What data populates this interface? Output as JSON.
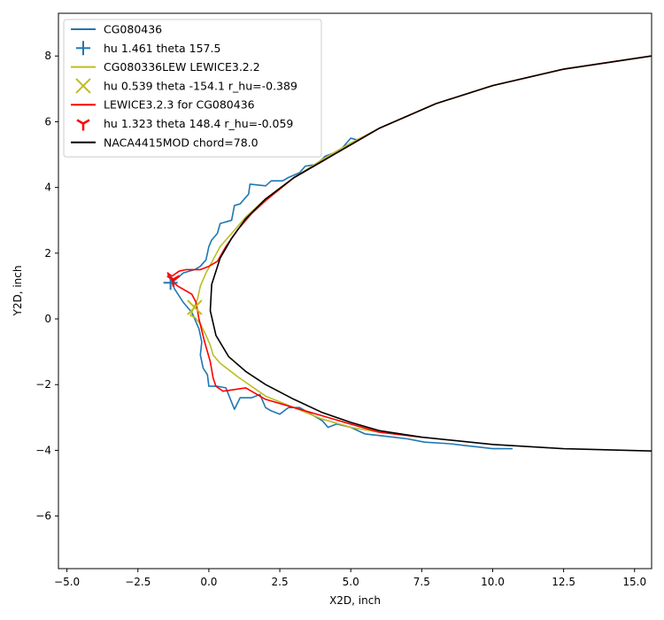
{
  "chart_data": {
    "type": "line",
    "title": "",
    "xlabel": "X2D, inch",
    "ylabel": "Y2D, inch",
    "xlim": [
      -5.3,
      15.6
    ],
    "ylim": [
      -7.6,
      9.3
    ],
    "xticks": [
      -5.0,
      -2.5,
      0.0,
      2.5,
      5.0,
      7.5,
      10.0,
      12.5,
      15.0
    ],
    "xtick_labels": [
      "−5.0",
      "−2.5",
      "0.0",
      "2.5",
      "5.0",
      "7.5",
      "10.0",
      "12.5",
      "15.0"
    ],
    "yticks": [
      -6,
      -4,
      -2,
      0,
      2,
      4,
      6,
      8
    ],
    "ytick_labels": [
      "−6",
      "−4",
      "−2",
      "0",
      "2",
      "4",
      "6",
      "8"
    ],
    "grid": false,
    "legend_position": "top-left",
    "series": [
      {
        "name": "CG080436",
        "kind": "line",
        "color": "#1f77b4",
        "points": [
          [
            10.7,
            -3.95
          ],
          [
            10.0,
            -3.95
          ],
          [
            9.5,
            -3.9
          ],
          [
            9.0,
            -3.85
          ],
          [
            8.5,
            -3.8
          ],
          [
            7.6,
            -3.75
          ],
          [
            7.0,
            -3.65
          ],
          [
            6.5,
            -3.6
          ],
          [
            6.0,
            -3.55
          ],
          [
            5.5,
            -3.5
          ],
          [
            5.0,
            -3.3
          ],
          [
            4.5,
            -3.2
          ],
          [
            4.2,
            -3.3
          ],
          [
            4.0,
            -3.1
          ],
          [
            3.6,
            -2.9
          ],
          [
            3.2,
            -2.7
          ],
          [
            2.8,
            -2.7
          ],
          [
            2.5,
            -2.9
          ],
          [
            2.2,
            -2.8
          ],
          [
            2.0,
            -2.7
          ],
          [
            1.8,
            -2.3
          ],
          [
            1.5,
            -2.4
          ],
          [
            1.1,
            -2.4
          ],
          [
            0.9,
            -2.75
          ],
          [
            0.6,
            -2.1
          ],
          [
            0.3,
            -2.05
          ],
          [
            0.0,
            -2.05
          ],
          [
            -0.05,
            -1.7
          ],
          [
            -0.2,
            -1.5
          ],
          [
            -0.3,
            -1.1
          ],
          [
            -0.25,
            -0.7
          ],
          [
            -0.35,
            -0.3
          ],
          [
            -0.6,
            0.2
          ],
          [
            -0.9,
            0.5
          ],
          [
            -1.2,
            0.9
          ],
          [
            -1.3,
            1.1
          ],
          [
            -0.9,
            1.4
          ],
          [
            -0.5,
            1.5
          ],
          [
            -0.3,
            1.6
          ],
          [
            -0.1,
            1.8
          ],
          [
            0.0,
            2.2
          ],
          [
            0.1,
            2.4
          ],
          [
            0.3,
            2.6
          ],
          [
            0.4,
            2.9
          ],
          [
            0.8,
            3.0
          ],
          [
            0.9,
            3.45
          ],
          [
            1.1,
            3.5
          ],
          [
            1.4,
            3.8
          ],
          [
            1.45,
            4.1
          ],
          [
            2.0,
            4.05
          ],
          [
            2.2,
            4.2
          ],
          [
            2.6,
            4.2
          ],
          [
            2.8,
            4.3
          ],
          [
            3.2,
            4.45
          ],
          [
            3.4,
            4.65
          ],
          [
            3.8,
            4.7
          ],
          [
            4.1,
            4.95
          ],
          [
            4.4,
            5.05
          ],
          [
            4.7,
            5.2
          ],
          [
            4.85,
            5.35
          ],
          [
            5.0,
            5.5
          ],
          [
            5.2,
            5.45
          ],
          [
            5.4,
            5.5
          ]
        ]
      },
      {
        "name": "hu 1.461 theta 157.5",
        "kind": "marker",
        "marker": "plus",
        "color": "#1f77b4",
        "points": [
          [
            -1.35,
            1.1
          ]
        ]
      },
      {
        "name": "CG080336LEW LEWICE3.2.2",
        "kind": "line",
        "color": "#bcbd22",
        "points": [
          [
            7.5,
            -3.6
          ],
          [
            6.0,
            -3.45
          ],
          [
            5.0,
            -3.3
          ],
          [
            4.0,
            -3.05
          ],
          [
            3.0,
            -2.7
          ],
          [
            2.0,
            -2.35
          ],
          [
            1.0,
            -1.75
          ],
          [
            0.4,
            -1.35
          ],
          [
            0.15,
            -1.1
          ],
          [
            0.05,
            -0.8
          ],
          [
            -0.1,
            -0.5
          ],
          [
            -0.3,
            -0.15
          ],
          [
            -0.5,
            0.05
          ],
          [
            -0.65,
            0.1
          ],
          [
            -0.55,
            0.3
          ],
          [
            -0.4,
            0.6
          ],
          [
            -0.3,
            1.0
          ],
          [
            -0.1,
            1.4
          ],
          [
            0.15,
            1.8
          ],
          [
            0.4,
            2.2
          ],
          [
            0.8,
            2.6
          ],
          [
            1.3,
            3.1
          ],
          [
            2.0,
            3.65
          ],
          [
            3.0,
            4.3
          ],
          [
            4.0,
            4.85
          ],
          [
            5.0,
            5.35
          ],
          [
            6.0,
            5.8
          ],
          [
            8.0,
            6.55
          ],
          [
            10.0,
            7.1
          ],
          [
            12.5,
            7.6
          ],
          [
            15.6,
            8.0
          ]
        ]
      },
      {
        "name": "hu 0.539 theta -154.1 r_hu=-0.389",
        "kind": "marker",
        "marker": "x",
        "color": "#bcbd22",
        "points": [
          [
            -0.5,
            0.35
          ]
        ]
      },
      {
        "name": "LEWICE3.2.3 for CG080436",
        "kind": "line",
        "color": "#ff0000",
        "points": [
          [
            7.5,
            -3.6
          ],
          [
            6.0,
            -3.45
          ],
          [
            5.0,
            -3.2
          ],
          [
            4.0,
            -2.95
          ],
          [
            3.0,
            -2.7
          ],
          [
            2.0,
            -2.45
          ],
          [
            1.3,
            -2.1
          ],
          [
            0.9,
            -2.15
          ],
          [
            0.5,
            -2.2
          ],
          [
            0.25,
            -2.05
          ],
          [
            0.15,
            -1.8
          ],
          [
            0.05,
            -1.3
          ],
          [
            -0.15,
            -0.7
          ],
          [
            -0.35,
            0.0
          ],
          [
            -0.45,
            0.5
          ],
          [
            -0.6,
            0.75
          ],
          [
            -0.8,
            0.85
          ],
          [
            -1.1,
            1.0
          ],
          [
            -1.35,
            1.2
          ],
          [
            -1.45,
            1.4
          ],
          [
            -1.3,
            1.3
          ],
          [
            -1.05,
            1.45
          ],
          [
            -0.8,
            1.5
          ],
          [
            -0.3,
            1.5
          ],
          [
            0.0,
            1.6
          ],
          [
            0.3,
            1.75
          ],
          [
            0.6,
            2.2
          ],
          [
            1.0,
            2.7
          ],
          [
            1.5,
            3.2
          ],
          [
            2.0,
            3.6
          ],
          [
            3.0,
            4.3
          ],
          [
            4.0,
            4.8
          ],
          [
            5.0,
            5.3
          ],
          [
            6.0,
            5.8
          ],
          [
            8.0,
            6.55
          ],
          [
            10.0,
            7.1
          ],
          [
            12.5,
            7.6
          ],
          [
            15.6,
            8.0
          ]
        ]
      },
      {
        "name": "hu 1.323 theta 148.4 r_hu=-0.059",
        "kind": "marker",
        "marker": "tri",
        "color": "#ff0000",
        "points": [
          [
            -1.25,
            1.2
          ]
        ]
      },
      {
        "name": "NACA4415MOD chord=78.0",
        "kind": "line",
        "color": "#000000",
        "points": [
          [
            15.6,
            -4.02
          ],
          [
            12.5,
            -3.95
          ],
          [
            10.0,
            -3.82
          ],
          [
            7.5,
            -3.6
          ],
          [
            6.0,
            -3.4
          ],
          [
            5.0,
            -3.15
          ],
          [
            4.0,
            -2.85
          ],
          [
            3.0,
            -2.45
          ],
          [
            2.0,
            -2.0
          ],
          [
            1.3,
            -1.6
          ],
          [
            0.7,
            -1.15
          ],
          [
            0.25,
            -0.5
          ],
          [
            0.05,
            0.25
          ],
          [
            0.1,
            1.05
          ],
          [
            0.4,
            1.85
          ],
          [
            0.8,
            2.45
          ],
          [
            1.3,
            3.05
          ],
          [
            2.0,
            3.65
          ],
          [
            3.0,
            4.3
          ],
          [
            4.0,
            4.8
          ],
          [
            5.0,
            5.3
          ],
          [
            6.0,
            5.8
          ],
          [
            8.0,
            6.55
          ],
          [
            10.0,
            7.1
          ],
          [
            12.5,
            7.6
          ],
          [
            15.6,
            8.0
          ]
        ]
      }
    ]
  }
}
